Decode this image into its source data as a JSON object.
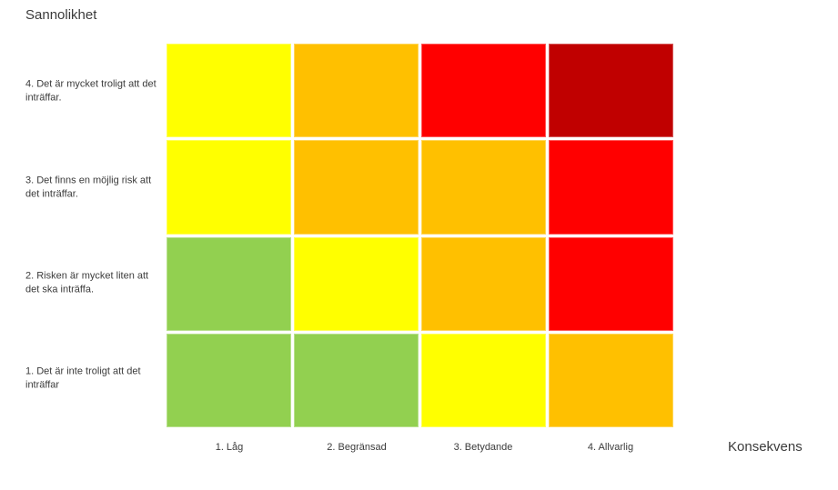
{
  "title": "Sannolikhet",
  "x_axis_label": "Konsekvens",
  "matrix": {
    "rows": [
      {
        "label": "4. Det är mycket troligt att det inträffar.",
        "cells": [
          "yellow",
          "orange",
          "red",
          "darkred"
        ]
      },
      {
        "label": "3. Det finns en möjlig risk att det inträffar.",
        "cells": [
          "yellow",
          "orange",
          "orange",
          "red"
        ]
      },
      {
        "label": "2. Risken är mycket liten att det ska inträffa.",
        "cells": [
          "green",
          "yellow",
          "orange",
          "red"
        ]
      },
      {
        "label": "1. Det är inte troligt att det inträffar",
        "cells": [
          "green",
          "green",
          "yellow",
          "orange"
        ]
      }
    ],
    "columns": [
      "1. Låg",
      "2. Begränsad",
      "3. Betydande",
      "4. Allvarlig"
    ]
  },
  "colors": {
    "green": "#92D050",
    "yellow": "#FFFF00",
    "orange": "#FFC000",
    "red": "#FF0000",
    "darkred": "#C00000"
  },
  "chart_data": {
    "type": "heatmap",
    "title": "Sannolikhet",
    "xlabel": "Konsekvens",
    "ylabel": "Sannolikhet",
    "x_categories": [
      "1. Låg",
      "2. Begränsad",
      "3. Betydande",
      "4. Allvarlig"
    ],
    "y_categories": [
      "4. Det är mycket troligt att det inträffar.",
      "3. Det finns en möjlig risk att det inträffar.",
      "2. Risken är mycket liten att det ska inträffa.",
      "1. Det är inte troligt att det inträffar"
    ],
    "cell_colors": [
      [
        "yellow",
        "orange",
        "red",
        "darkred"
      ],
      [
        "yellow",
        "orange",
        "orange",
        "red"
      ],
      [
        "green",
        "yellow",
        "orange",
        "red"
      ],
      [
        "green",
        "green",
        "yellow",
        "orange"
      ]
    ],
    "color_values": {
      "green": "#92D050",
      "yellow": "#FFFF00",
      "orange": "#FFC000",
      "red": "#FF0000",
      "darkred": "#C00000"
    },
    "legend": "none",
    "grid": "white 3px gaps between cells",
    "layout": "4x4 risk matrix, probability rows (4 top to 1 bottom) vs consequence columns (1 left to 4 right)"
  }
}
